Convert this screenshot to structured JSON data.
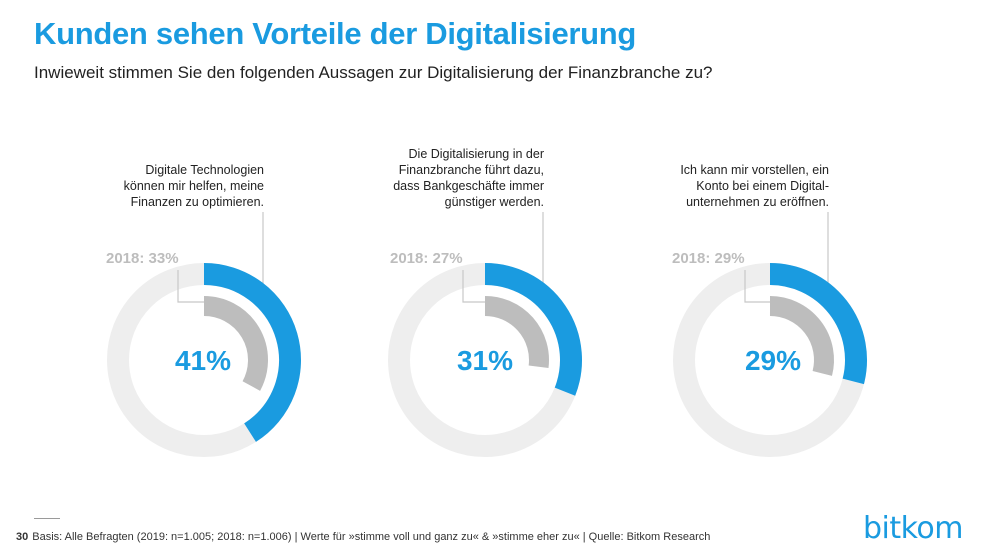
{
  "header": {
    "title": "Kunden sehen Vorteile der Digitalisierung",
    "subtitle": "Inwieweit stimmen Sie den folgenden Aussagen zur Digitalisierung der Finanzbranche zu?"
  },
  "chart_data": [
    {
      "type": "pie",
      "variant": "donut",
      "statement": [
        "Digitale Technologien",
        "können mir helfen, meine",
        "Finanzen zu optimieren."
      ],
      "current_label": "41%",
      "current_value": 41,
      "previous_label": "2018: 33%",
      "previous_value": 33,
      "series": [
        {
          "name": "2019",
          "values": [
            41
          ]
        },
        {
          "name": "2018",
          "values": [
            33
          ]
        }
      ]
    },
    {
      "type": "pie",
      "variant": "donut",
      "statement": [
        "Die Digitalisierung in der",
        "Finanzbranche führt dazu,",
        "dass Bankgeschäfte immer",
        "günstiger werden."
      ],
      "current_label": "31%",
      "current_value": 31,
      "previous_label": "2018: 27%",
      "previous_value": 27,
      "series": [
        {
          "name": "2019",
          "values": [
            31
          ]
        },
        {
          "name": "2018",
          "values": [
            27
          ]
        }
      ]
    },
    {
      "type": "pie",
      "variant": "donut",
      "statement": [
        "Ich kann mir vorstellen, ein",
        "Konto bei einem Digital-",
        "unternehmen zu eröffnen."
      ],
      "current_label": "29%",
      "current_value": 29,
      "previous_label": "2018: 29%",
      "previous_value": 29,
      "series": [
        {
          "name": "2019",
          "values": [
            29
          ]
        },
        {
          "name": "2018",
          "values": [
            29
          ]
        }
      ]
    }
  ],
  "colors": {
    "accent": "#1a9be0",
    "previous": "#bdbdbd",
    "track": "#eeeeee",
    "leader": "#c8c8c8"
  },
  "footer": {
    "page_number": "30",
    "note": "Basis: Alle Befragten (2019: n=1.005; 2018: n=1.006) | Werte für »stimme voll und ganz zu« & »stimme eher zu« |  Quelle: Bitkom Research"
  },
  "logo": "bitkom"
}
